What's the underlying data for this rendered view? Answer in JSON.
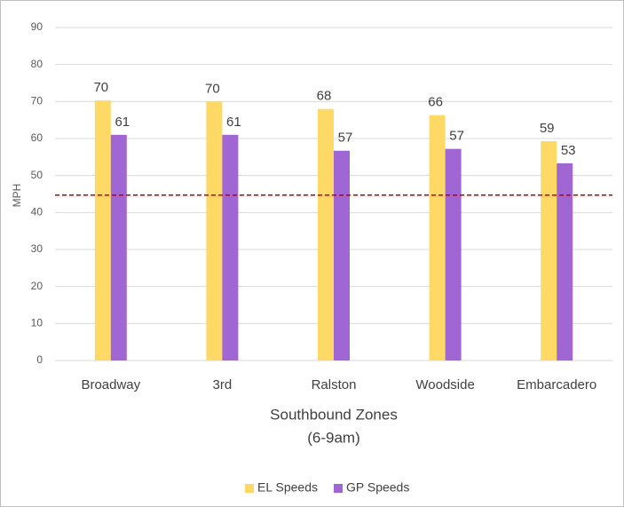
{
  "chart_data": {
    "type": "bar",
    "ylabel": "MPH",
    "xlabel": [
      "Southbound Zones",
      "(6-9am)"
    ],
    "categories": [
      "Broadway",
      "3rd",
      "Ralston",
      "Woodside",
      "Embarcadero"
    ],
    "series": [
      {
        "name": "EL Speeds",
        "color": "#FFD966",
        "values": [
          70.3,
          70,
          68,
          66.3,
          59.3
        ],
        "value_labels": [
          "70",
          "70",
          "68",
          "66",
          "59"
        ]
      },
      {
        "name": "GP Speeds",
        "color": "#A066D3",
        "values": [
          61,
          61,
          56.7,
          57.2,
          53.3
        ],
        "value_labels": [
          "61",
          "61",
          "57",
          "57",
          "53"
        ]
      }
    ],
    "reference_line": {
      "value": 44.7,
      "color": "#C00000"
    },
    "ylim": [
      0,
      90
    ],
    "yticks": [
      0,
      10,
      20,
      30,
      40,
      50,
      60,
      70,
      80,
      90
    ],
    "grid": true,
    "legend": "bottom"
  }
}
